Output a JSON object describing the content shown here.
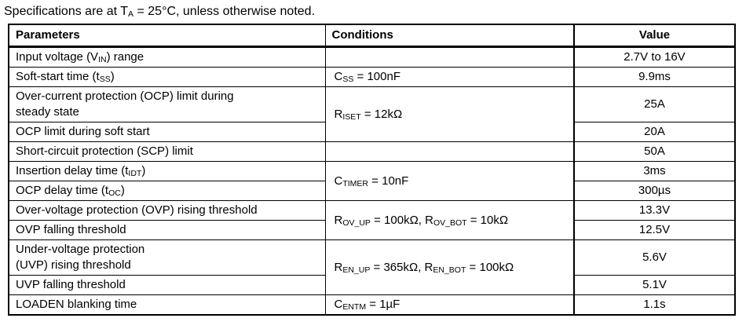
{
  "title": "Specifications are at T~A~ = 25°C, unless otherwise noted.",
  "table": {
    "headers": {
      "parameters": "Parameters",
      "conditions": "Conditions",
      "value": "Value"
    },
    "rows": [
      {
        "param": "Input voltage (V~IN~) range",
        "cond": "",
        "value": "2.7V to 16V"
      },
      {
        "param": "Soft-start time (t~SS~)",
        "cond": "C~SS~ = 100nF",
        "value": "9.9ms"
      },
      {
        "param": "Over-current protection (OCP) limit during\nsteady state",
        "cond": "R~ISET~ = 12kΩ",
        "value": "25A"
      },
      {
        "param": "OCP limit during soft start",
        "value": "20A"
      },
      {
        "param": "Short-circuit protection (SCP) limit",
        "cond": "",
        "value": "50A"
      },
      {
        "param": "Insertion delay time (t~IDT~)",
        "cond": "C~TIMER~ = 10nF",
        "value": "3ms"
      },
      {
        "param": "OCP delay time (t~OC~)",
        "value": "300µs"
      },
      {
        "param": "Over-voltage protection (OVP) rising threshold",
        "cond": "R~OV_UP~ = 100kΩ, R~OV_BOT~ = 10kΩ",
        "value": "13.3V"
      },
      {
        "param": "OVP falling threshold",
        "value": "12.5V"
      },
      {
        "param": "Under-voltage protection\n(UVP) rising threshold",
        "cond": "R~EN_UP~ = 365kΩ, R~EN_BOT~ = 100kΩ",
        "value": "5.6V"
      },
      {
        "param": "UVP falling threshold",
        "value": "5.1V"
      },
      {
        "param": "LOADEN blanking time",
        "cond": "C~ENTM~ = 1µF",
        "value": "1.1s"
      }
    ]
  }
}
